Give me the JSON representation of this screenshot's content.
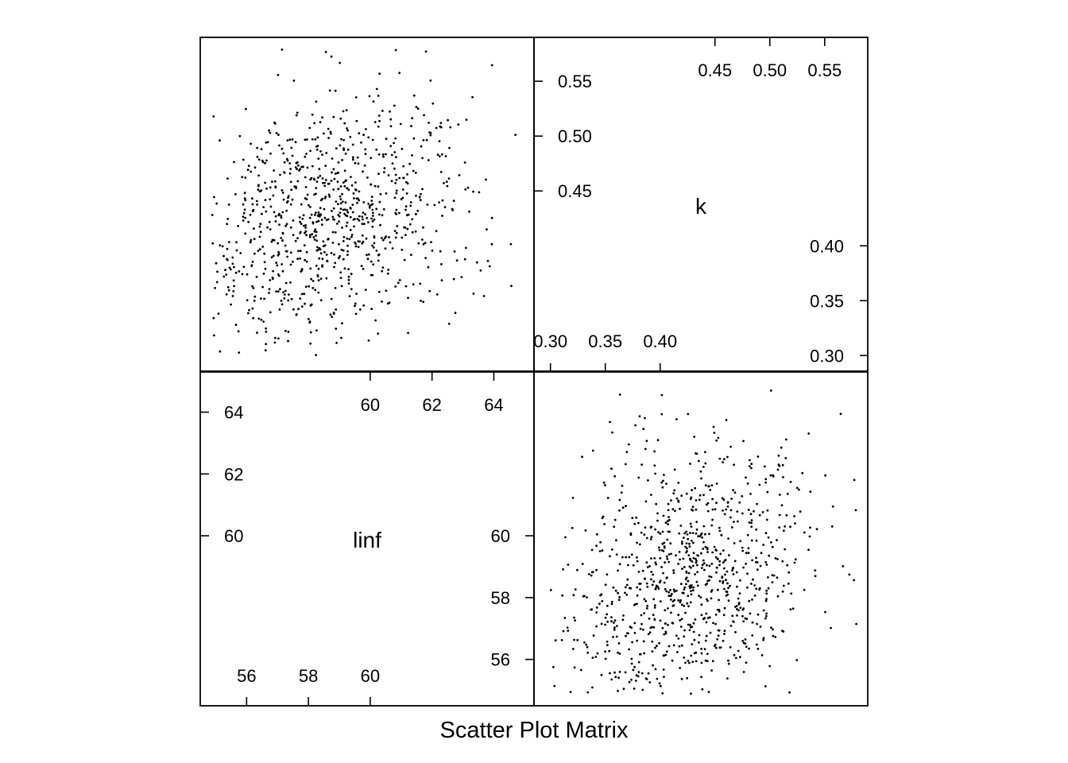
{
  "chart_data": {
    "type": "scatter",
    "title": "Scatter Plot Matrix",
    "variables": [
      {
        "name": "linf",
        "ticks": [
          56,
          58,
          60,
          62,
          64
        ],
        "range": [
          54.5,
          65.3
        ]
      },
      {
        "name": "k",
        "ticks": [
          0.3,
          0.35,
          0.4,
          0.45,
          0.5,
          0.55
        ],
        "range": [
          0.285,
          0.59
        ]
      }
    ],
    "diagonal_ticks": {
      "linf": {
        "bottom": [
          "56",
          "58",
          "60"
        ],
        "top": [
          "60",
          "62",
          "64"
        ],
        "left": [
          "60",
          "62",
          "64"
        ],
        "right": [
          "56",
          "58",
          "60"
        ]
      },
      "k": {
        "bottom": [
          "0.30",
          "0.35",
          "0.40"
        ],
        "top": [
          "0.45",
          "0.50",
          "0.55"
        ],
        "left": [
          "0.45",
          "0.50",
          "0.55"
        ],
        "right": [
          "0.30",
          "0.35",
          "0.40"
        ]
      }
    },
    "series": [
      {
        "x_var": "linf",
        "y_var": "k",
        "n_points": 900,
        "x_mean": 59.5,
        "x_sd": 1.9,
        "y_mean": 0.405,
        "y_sd": 0.06,
        "correlation": 0.25
      }
    ],
    "grid": false
  }
}
